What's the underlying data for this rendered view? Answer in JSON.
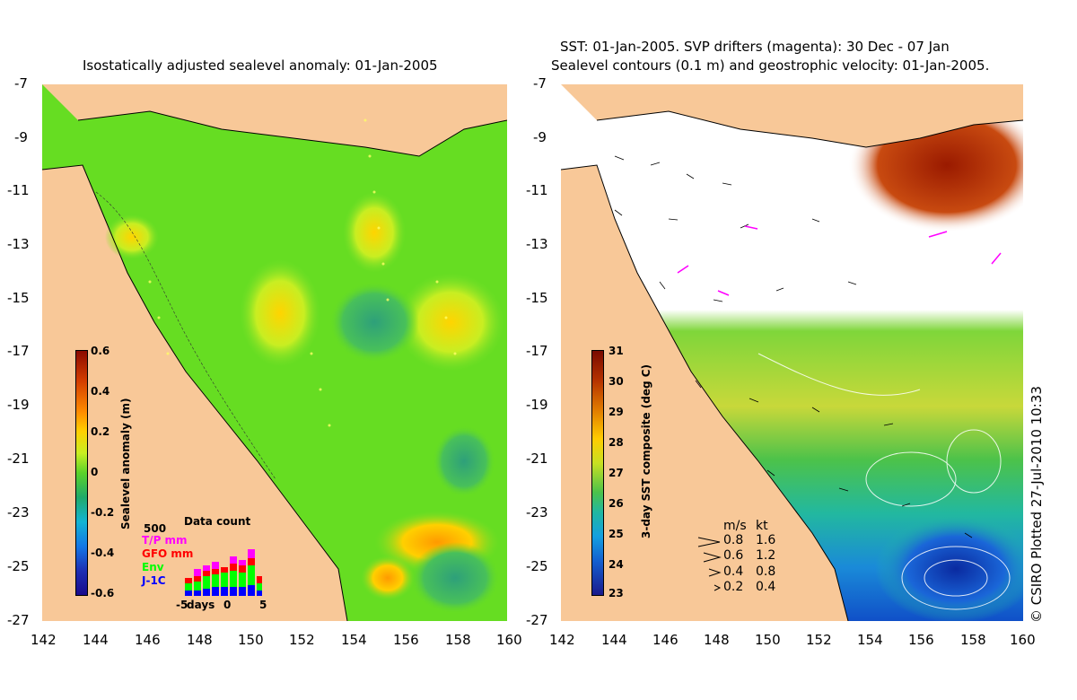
{
  "left_panel": {
    "title": "Isostatically adjusted sealevel anomaly: 01-Jan-2005",
    "y_ticks": [
      "-7",
      "-9",
      "-11",
      "-13",
      "-15",
      "-17",
      "-19",
      "-21",
      "-23",
      "-25",
      "-27"
    ],
    "x_ticks": [
      "142",
      "144",
      "146",
      "148",
      "150",
      "152",
      "154",
      "156",
      "158",
      "160"
    ],
    "colorbar": {
      "label": "Sealevel anomaly (m)",
      "ticks": [
        "0.6",
        "0.4",
        "0.2",
        "0",
        "-0.2",
        "-0.4",
        "-0.6"
      ],
      "range": [
        -0.6,
        0.6
      ]
    },
    "data_count": {
      "title": "Data count",
      "scale": "500",
      "legend": [
        {
          "label": "T/P mm",
          "color": "#ff00ff"
        },
        {
          "label": "GFO mm",
          "color": "#ff0000"
        },
        {
          "label": "Env",
          "color": "#00ff00"
        },
        {
          "label": "J-1C",
          "color": "#0000ff"
        }
      ],
      "x_label": "days",
      "x_ticks": [
        "-5",
        "0",
        "5"
      ]
    }
  },
  "right_panel": {
    "title_line1": "SST: 01-Jan-2005. SVP drifters (magenta): 30 Dec - 07 Jan",
    "title_line2": "Sealevel contours (0.1 m) and geostrophic velocity: 01-Jan-2005.",
    "y_ticks": [
      "-7",
      "-9",
      "-11",
      "-13",
      "-15",
      "-17",
      "-19",
      "-21",
      "-23",
      "-25",
      "-27"
    ],
    "x_ticks": [
      "142",
      "144",
      "146",
      "148",
      "150",
      "152",
      "154",
      "156",
      "158",
      "160"
    ],
    "colorbar": {
      "label": "3-day SST composite (deg C)",
      "ticks": [
        "31",
        "30",
        "29",
        "28",
        "27",
        "26",
        "25",
        "24",
        "23"
      ],
      "range": [
        23,
        31
      ]
    },
    "velocity_legend": {
      "header_ms": "m/s",
      "header_kt": "kt",
      "rows": [
        {
          "ms": "0.8",
          "kt": "1.6"
        },
        {
          "ms": "0.6",
          "kt": "1.2"
        },
        {
          "ms": "0.4",
          "kt": "0.8"
        },
        {
          "ms": "0.2",
          "kt": "0.4"
        }
      ]
    }
  },
  "copyright": "© CSIRO Plotted 27-Jul-2010 10:33",
  "colors": {
    "land": "#f8c898",
    "sea_mid": "#66dd22",
    "high_anomaly": "#ffcc00",
    "low_anomaly": "#33aa66",
    "cold_sst": "#1060d0",
    "warm_sst": "#a02000"
  }
}
